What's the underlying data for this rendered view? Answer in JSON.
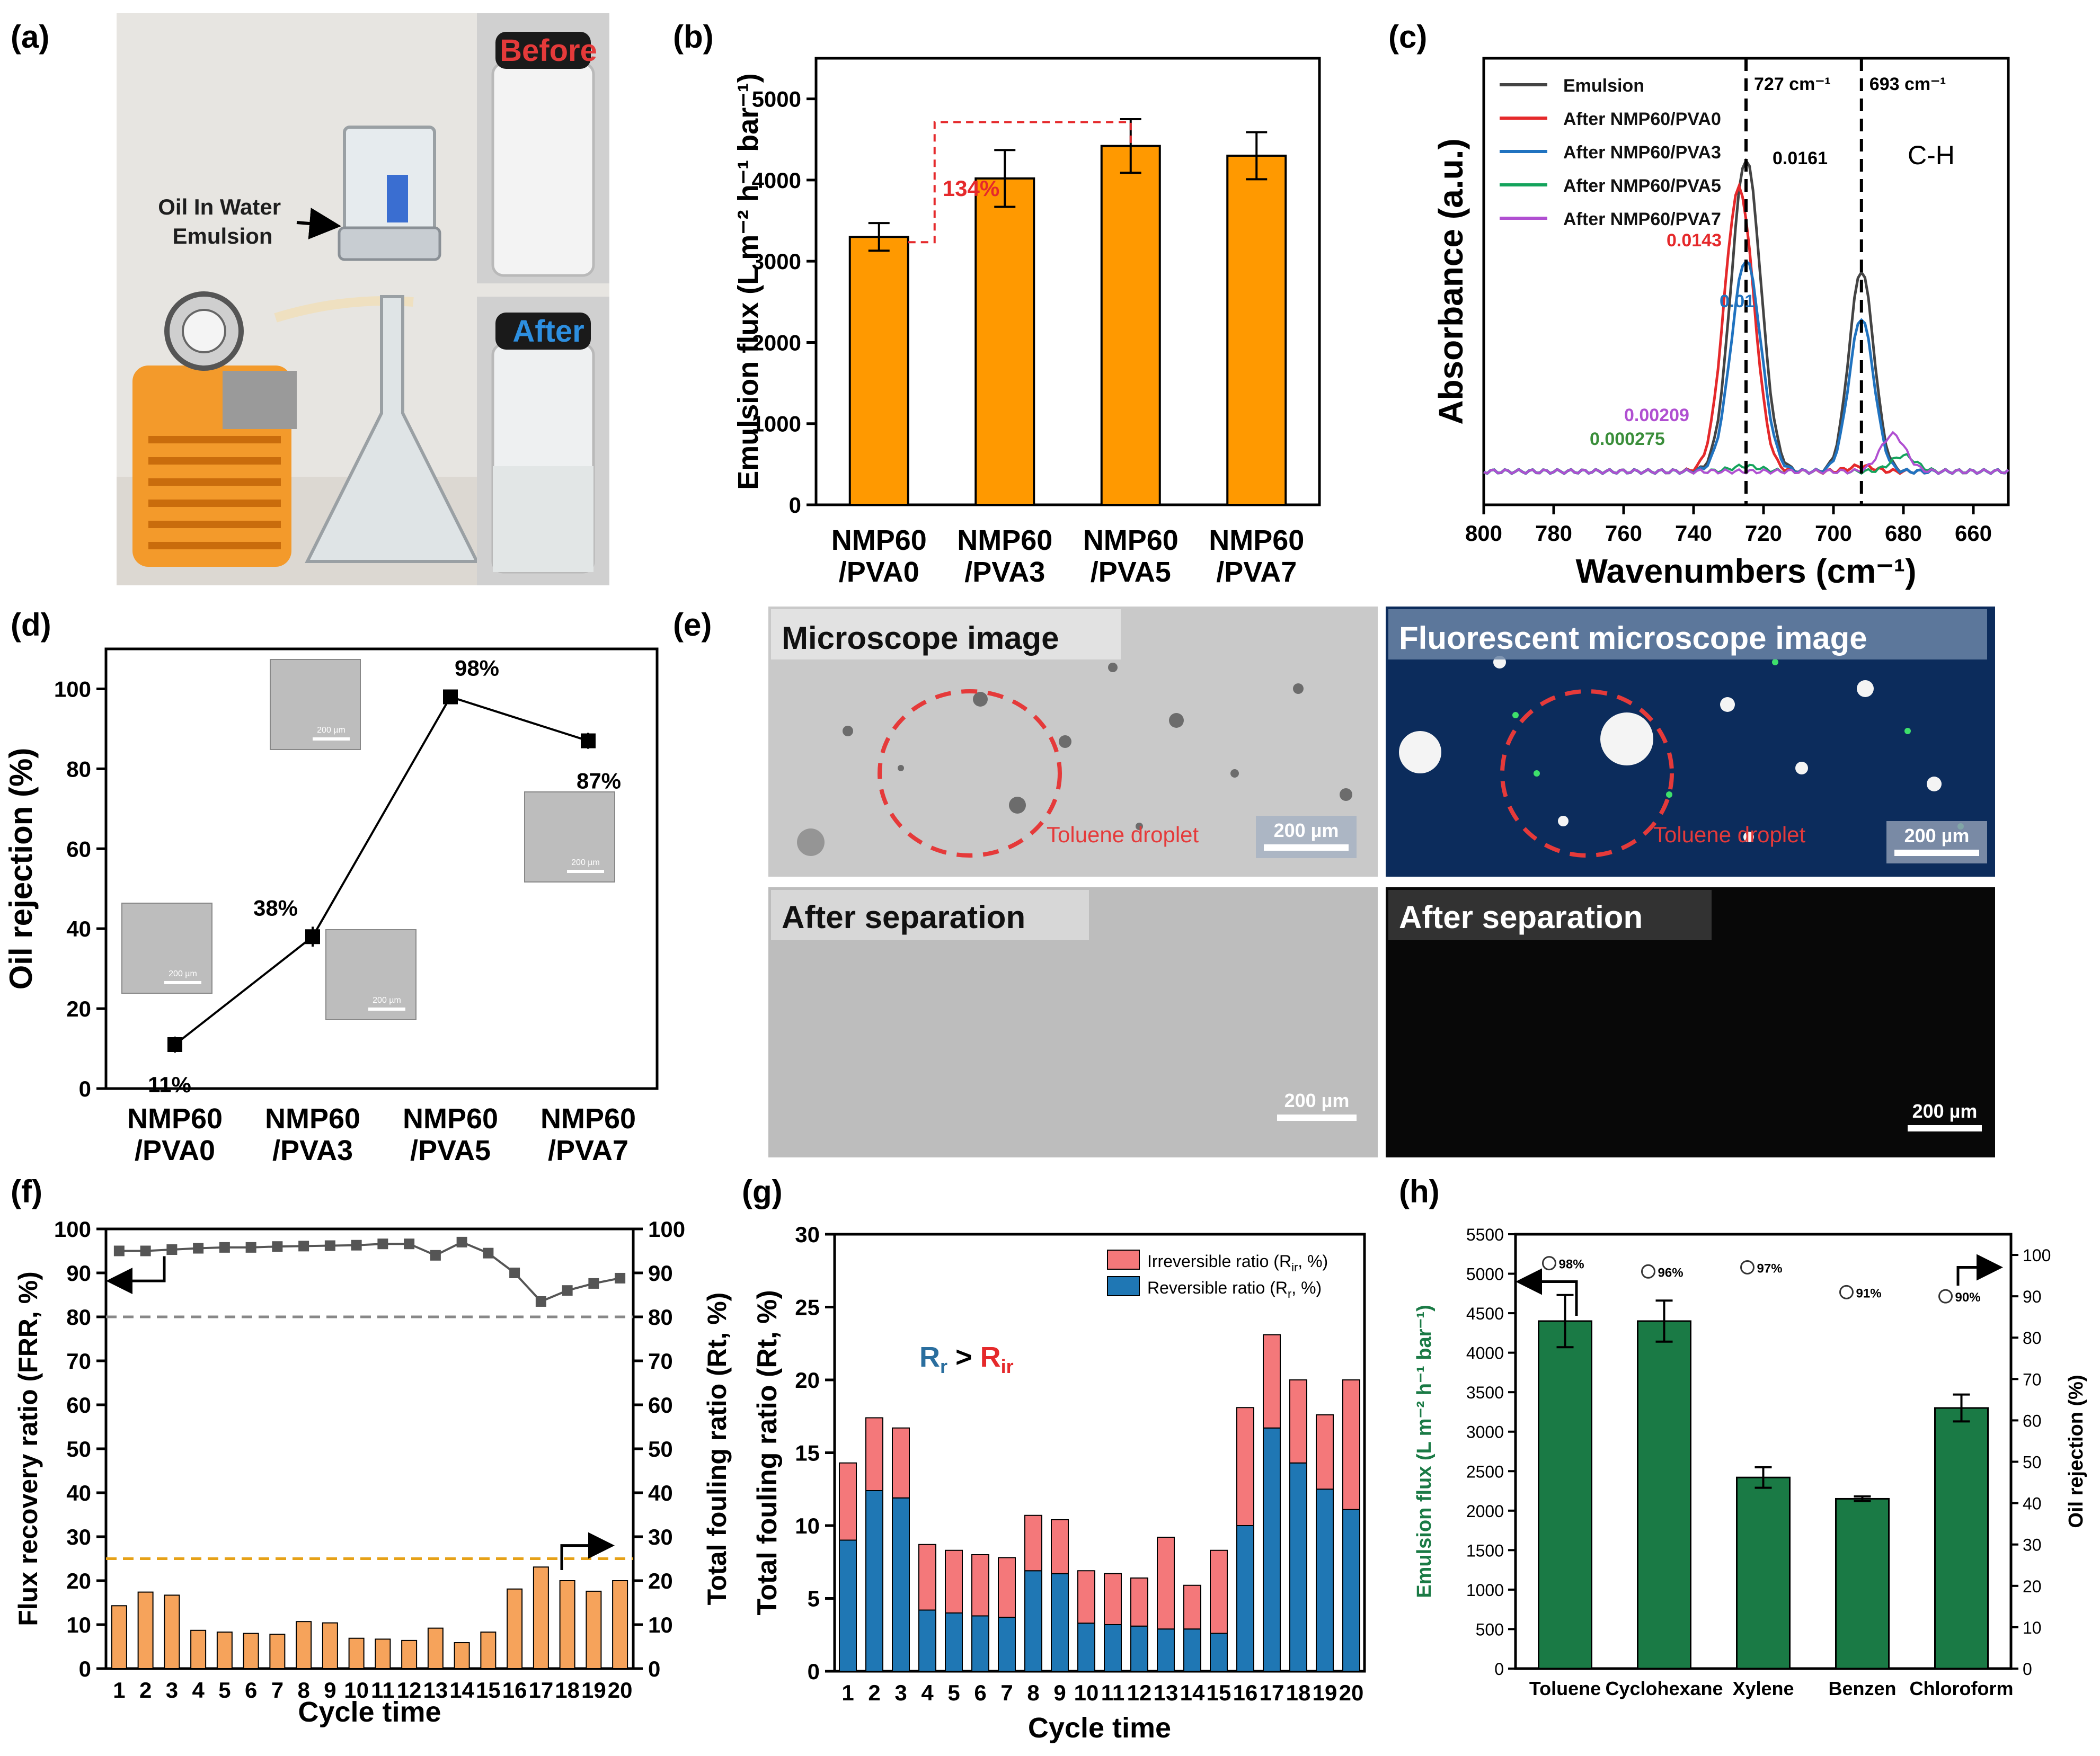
{
  "colors": {
    "orange": "#ff9900",
    "orange_light": "#f6a35b",
    "green": "#1a7a45",
    "red": "#e5292b",
    "blue": "#2073c0",
    "gray": "#444444",
    "purple": "#b04fd1",
    "teal": "#14a35c",
    "dash_gray": "#888888",
    "dash_orange": "#e6a117",
    "pink": "#f4787a",
    "steel": "#1f77b4"
  },
  "a": {
    "letter": "(a)",
    "label": "Oil In Water\nEmulsion",
    "label_l1": "Oil In Water",
    "label_l2": "Emulsion",
    "before": "Before",
    "after": "After"
  },
  "b": {
    "letter": "(b)",
    "annotation": "134%"
  },
  "c": {
    "letter": "(c)",
    "peak1": "727  cm⁻¹",
    "peak2": "693  cm⁻¹",
    "ch": "C-H",
    "v1": "0.0161",
    "v2": "0.0143",
    "v3": "0.01",
    "v4": "0.00209",
    "v5": "0.000275"
  },
  "d": {
    "letter": "(d)",
    "labels": [
      "11%",
      "38%",
      "98%",
      "87%"
    ],
    "scale": "200 µm"
  },
  "e": {
    "letter": "(e)",
    "micro": "Microscope image",
    "fluor": "Fluorescent microscope image",
    "after1": "After separation",
    "after2": "After separation",
    "droplet1": "Toluene droplet",
    "droplet2": "Toluene droplet",
    "scale": "200 µm"
  },
  "f": {
    "letter": "(f)"
  },
  "g": {
    "letter": "(g)",
    "rr": "R",
    "rr_sub": "r",
    "gt": " > ",
    "rir": "R",
    "rir_sub": "ir"
  },
  "h": {
    "letter": "(h)",
    "rejections": [
      "98%",
      "96%",
      "97%",
      "91%",
      "90%"
    ]
  },
  "chart_data": [
    {
      "panel": "b",
      "type": "bar",
      "title": "",
      "categories": [
        "NMP60\n/PVA0",
        "NMP60\n/PVA3",
        "NMP60\n/PVA5",
        "NMP60\n/PVA7"
      ],
      "cat_l1": [
        "NMP60",
        "NMP60",
        "NMP60",
        "NMP60"
      ],
      "cat_l2": [
        "/PVA0",
        "/PVA3",
        "/PVA5",
        "/PVA7"
      ],
      "values": [
        3300,
        4020,
        4420,
        4300
      ],
      "errors": [
        170,
        350,
        330,
        290
      ],
      "ylabel": "Emulsion flux (L m⁻² h⁻¹ bar⁻¹)",
      "ylim": [
        0,
        5500
      ],
      "yticks": [
        "0",
        "1000",
        "2000",
        "3000",
        "4000",
        "5000"
      ]
    },
    {
      "panel": "c",
      "type": "line",
      "xlabel": "Wavenumbers (cm⁻¹)",
      "ylabel": "Absorbance (a.u.)",
      "xlim": [
        800,
        650
      ],
      "xticks": [
        "800",
        "780",
        "760",
        "740",
        "720",
        "700",
        "680",
        "660"
      ],
      "legend": [
        "Emulsion",
        "After NMP60/PVA0",
        "After NMP60/PVA3",
        "After NMP60/PVA5",
        "After NMP60/PVA7"
      ]
    },
    {
      "panel": "d",
      "type": "line",
      "categories": [
        "NMP60\n/PVA0",
        "NMP60\n/PVA3",
        "NMP60\n/PVA5",
        "NMP60\n/PVA7"
      ],
      "cat_l1": [
        "NMP60",
        "NMP60",
        "NMP60",
        "NMP60"
      ],
      "cat_l2": [
        "/PVA0",
        "/PVA3",
        "/PVA5",
        "/PVA7"
      ],
      "values": [
        11,
        38,
        98,
        87
      ],
      "errors": [
        2,
        2.5,
        1.5,
        2
      ],
      "ylabel": "Oil rejection (%)",
      "ylim": [
        0,
        110
      ],
      "yticks": [
        "0",
        "20",
        "40",
        "60",
        "80",
        "100"
      ]
    },
    {
      "panel": "f",
      "type": "bar",
      "x": [
        "1",
        "2",
        "3",
        "4",
        "5",
        "6",
        "7",
        "8",
        "9",
        "10",
        "11",
        "12",
        "13",
        "14",
        "15",
        "16",
        "17",
        "18",
        "19",
        "20"
      ],
      "frr": [
        95,
        95,
        95.3,
        95.6,
        95.8,
        95.8,
        96,
        96.1,
        96.2,
        96.3,
        96.6,
        96.6,
        94,
        97,
        94.5,
        90,
        83.5,
        86,
        87.6,
        88.8
      ],
      "fouling": [
        14.3,
        17.4,
        16.7,
        8.7,
        8.3,
        8,
        7.8,
        10.7,
        10.4,
        6.9,
        6.7,
        6.4,
        9.2,
        5.9,
        8.3,
        18.1,
        23.1,
        20,
        17.6,
        20
      ],
      "xlabel": "Cycle time",
      "ylabel_left": "Flux recovery ratio (FRR, %)",
      "ylabel_right": "Total fouling ratio (Rt, %)",
      "ylim": [
        0,
        100
      ],
      "yticks": [
        "0",
        "10",
        "20",
        "30",
        "40",
        "50",
        "60",
        "70",
        "80",
        "90",
        "100"
      ],
      "ref_lines": [
        80,
        25
      ]
    },
    {
      "panel": "g",
      "type": "bar",
      "x": [
        "1",
        "2",
        "3",
        "4",
        "5",
        "6",
        "7",
        "8",
        "9",
        "10",
        "11",
        "12",
        "13",
        "14",
        "15",
        "16",
        "17",
        "18",
        "19",
        "20"
      ],
      "series": [
        {
          "name": "Reversible ratio (Rᵣ, %)",
          "values": [
            9,
            12.4,
            11.9,
            4.2,
            4,
            3.8,
            3.7,
            6.9,
            6.7,
            3.3,
            3.2,
            3.1,
            2.9,
            2.9,
            2.6,
            10,
            16.7,
            14.3,
            12.5,
            11.1
          ]
        },
        {
          "name": "Irreversible ratio (Rᵢᵣ, %)",
          "values": [
            5.3,
            5,
            4.8,
            4.5,
            4.3,
            4.2,
            4.1,
            3.8,
            3.7,
            3.6,
            3.5,
            3.3,
            6.3,
            3,
            5.7,
            8.1,
            6.4,
            5.7,
            5.1,
            8.9
          ]
        }
      ],
      "legend_l1": [
        "Irreversible ratio (R",
        "ir",
        ", %)"
      ],
      "legend_l2": [
        "Reversible ratio (R",
        "r",
        ", %)"
      ],
      "xlabel": "Cycle time",
      "ylabel": "Total fouling ratio (Rt, %)",
      "ylim": [
        0,
        30
      ],
      "yticks": [
        "0",
        "5",
        "10",
        "15",
        "20",
        "25",
        "30"
      ]
    },
    {
      "panel": "h",
      "type": "bar",
      "categories": [
        "Toluene",
        "Cyclohexane",
        "Xylene",
        "Benzen",
        "Chloroform"
      ],
      "values": [
        4400,
        4400,
        2420,
        2150,
        3300
      ],
      "errors": [
        330,
        260,
        130,
        30,
        170
      ],
      "rejection": [
        98,
        96,
        97,
        91,
        90
      ],
      "ylabel_left": "Emulsion flux (L m⁻² h⁻¹ bar⁻¹)",
      "ylabel_right": "Oil rejection (%)",
      "ylim": [
        0,
        5500
      ],
      "yticks": [
        "0",
        "500",
        "1000",
        "1500",
        "2000",
        "2500",
        "3000",
        "3500",
        "4000",
        "4500",
        "5000",
        "5500"
      ],
      "yticks_right": [
        "0",
        "10",
        "20",
        "30",
        "40",
        "50",
        "60",
        "70",
        "80",
        "90",
        "100"
      ]
    }
  ]
}
